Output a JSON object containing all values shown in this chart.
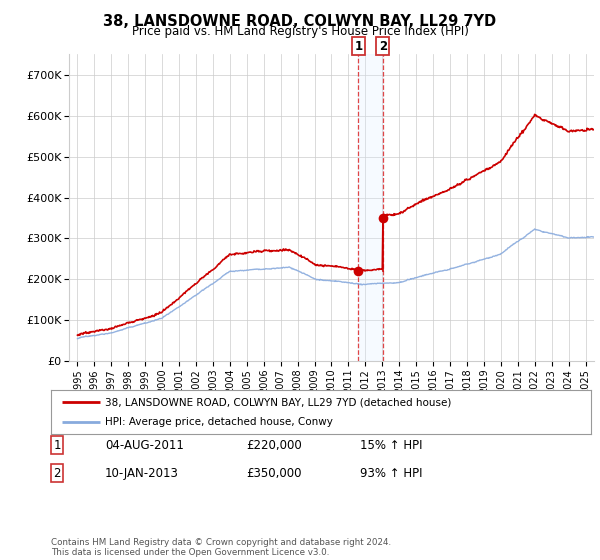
{
  "title": "38, LANSDOWNE ROAD, COLWYN BAY, LL29 7YD",
  "subtitle": "Price paid vs. HM Land Registry's House Price Index (HPI)",
  "legend_line1": "38, LANSDOWNE ROAD, COLWYN BAY, LL29 7YD (detached house)",
  "legend_line2": "HPI: Average price, detached house, Conwy",
  "footnote": "Contains HM Land Registry data © Crown copyright and database right 2024.\nThis data is licensed under the Open Government Licence v3.0.",
  "transaction1_label": "1",
  "transaction1_date": "04-AUG-2011",
  "transaction1_price": "£220,000",
  "transaction1_hpi": "15% ↑ HPI",
  "transaction2_label": "2",
  "transaction2_date": "10-JAN-2013",
  "transaction2_price": "£350,000",
  "transaction2_hpi": "93% ↑ HPI",
  "transaction1_x": 2011.585,
  "transaction1_y": 220000,
  "transaction2_x": 2013.03,
  "transaction2_y": 350000,
  "price_line_color": "#cc0000",
  "hpi_line_color": "#88aadd",
  "background_color": "#ffffff",
  "plot_bg_color": "#ffffff",
  "grid_color": "#cccccc",
  "highlight_color": "#ddeeff",
  "ylim": [
    0,
    750000
  ],
  "xlim_left": 1994.5,
  "xlim_right": 2025.5,
  "yticks": [
    0,
    100000,
    200000,
    300000,
    400000,
    500000,
    600000,
    700000
  ],
  "ytick_labels": [
    "£0",
    "£100K",
    "£200K",
    "£300K",
    "£400K",
    "£500K",
    "£600K",
    "£700K"
  ],
  "xticks": [
    1995,
    1996,
    1997,
    1998,
    1999,
    2000,
    2001,
    2002,
    2003,
    2004,
    2005,
    2006,
    2007,
    2008,
    2009,
    2010,
    2011,
    2012,
    2013,
    2014,
    2015,
    2016,
    2017,
    2018,
    2019,
    2020,
    2021,
    2022,
    2023,
    2024,
    2025
  ]
}
